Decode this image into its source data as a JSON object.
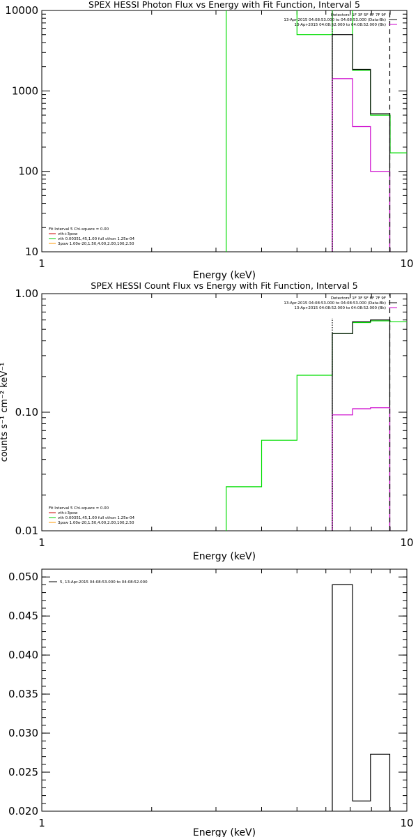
{
  "chart_data": [
    {
      "type": "line",
      "title": "SPEX HESSI Photon Flux vs Energy with Fit Function, Interval 5",
      "xlabel": "Energy (keV)",
      "ylabel": "",
      "xscale": "log",
      "yscale": "log",
      "xlim": [
        1,
        10
      ],
      "ylim": [
        10,
        10000
      ],
      "x_ticks": [
        "1",
        "10"
      ],
      "y_ticks": [
        "10",
        "100",
        "1000",
        "10000"
      ],
      "legend_topright": [
        {
          "text": "Detectors: 1F 3F 5F 6F 7F 9F",
          "color": ""
        },
        {
          "text": "13-Apr-2015 04:08:53.000 to 04:08:53.000 (Data-Bk)",
          "color": "#000000"
        },
        {
          "text": "13-Apr-2015 04:08:52.000 to 04:08:52.000 (Bk)",
          "color": "#cc00cc"
        }
      ],
      "legend_bottomleft": [
        {
          "text": "Fit Interval 5   Chi-square = 0.00",
          "color": ""
        },
        {
          "text": "vth+3pow",
          "color": "#cc0000"
        },
        {
          "text": "vth 0.00351,45,1.00  full cthon 1.25e-04",
          "color": "#00cc00"
        },
        {
          "text": "3pow 1.00e-20,1.50,4.00,2.00,100,2.50",
          "color": "#ff9900"
        }
      ],
      "series": [
        {
          "color": "#00dd00",
          "type": "step",
          "x": [
            3.2,
            3.2
          ],
          "y": [
            10,
            10000
          ]
        },
        {
          "color": "#00dd00",
          "type": "step",
          "x": [
            5.0,
            5.0,
            6.25,
            6.25
          ],
          "y": [
            10000,
            5000,
            5000,
            10000
          ]
        },
        {
          "color": "#00dd00",
          "type": "step",
          "x": [
            7.1,
            7.1,
            7.95,
            7.95,
            9.0,
            9.0,
            10.0
          ],
          "y": [
            10000,
            1800,
            1800,
            500,
            500,
            170,
            170
          ]
        },
        {
          "color": "#000000",
          "type": "step",
          "x": [
            6.25,
            6.25,
            7.1,
            7.1,
            7.95,
            7.95,
            8.98,
            8.98
          ],
          "y": [
            10,
            5000,
            5000,
            1850,
            1850,
            520,
            520,
            10
          ]
        },
        {
          "color": "#cc00cc",
          "type": "step",
          "x": [
            6.25,
            6.25,
            7.1,
            7.1,
            7.95,
            7.95,
            8.98,
            8.98
          ],
          "y": [
            10,
            1420,
            1420,
            360,
            360,
            100,
            100,
            10
          ]
        },
        {
          "color": "#000000",
          "type": "dotted",
          "x": [
            6.25,
            6.25
          ],
          "y": [
            10,
            10000
          ]
        },
        {
          "color": "#000000",
          "type": "dashed",
          "x": [
            8.98,
            8.98
          ],
          "y": [
            10,
            10000
          ]
        }
      ]
    },
    {
      "type": "line",
      "title": "SPEX HESSI Count Flux vs Energy with Fit Function, Interval 5",
      "xlabel": "Energy (keV)",
      "ylabel": "counts s⁻¹ cm⁻² keV⁻¹",
      "xscale": "log",
      "yscale": "log",
      "xlim": [
        1,
        10
      ],
      "ylim": [
        0.01,
        1.0
      ],
      "x_ticks": [
        "1",
        "10"
      ],
      "y_ticks": [
        "0.01",
        "0.10",
        "1.00"
      ],
      "legend_topright": [
        {
          "text": "Detectors: 1F 3F 5F 6F 7F 9F",
          "color": ""
        },
        {
          "text": "13-Apr-2015 04:08:53.000 to 04:08:53.000 (Data-Bk)",
          "color": "#000000"
        },
        {
          "text": "13-Apr-2015 04:08:52.000 to 04:08:52.000 (Bk)",
          "color": "#cc00cc"
        }
      ],
      "legend_bottomleft": [
        {
          "text": "Fit Interval 5   Chi-square = 0.00",
          "color": ""
        },
        {
          "text": "vth+3pow",
          "color": "#cc0000"
        },
        {
          "text": "vth 0.00351,45,1.00  full cthon 1.25e-04",
          "color": "#00cc00"
        },
        {
          "text": "3pow 1.00e-20,1.50,4.00,2.00,100,2.50",
          "color": "#ff9900"
        }
      ],
      "series": [
        {
          "color": "#00dd00",
          "type": "step",
          "x": [
            3.2,
            3.2,
            4.0,
            4.0,
            5.0,
            5.0,
            6.25,
            6.25,
            7.1,
            7.1,
            7.95,
            7.95,
            9.0,
            9.0,
            10.0
          ],
          "y": [
            0.01,
            0.0235,
            0.0235,
            0.058,
            0.058,
            0.205,
            0.205,
            0.46,
            0.46,
            0.57,
            0.57,
            0.59,
            0.59,
            0.58,
            0.58
          ]
        },
        {
          "color": "#000000",
          "type": "step",
          "x": [
            6.25,
            6.25,
            7.1,
            7.1,
            7.95,
            7.95,
            8.98,
            8.98
          ],
          "y": [
            0.01,
            0.46,
            0.46,
            0.58,
            0.58,
            0.6,
            0.6,
            0.01
          ]
        },
        {
          "color": "#cc00cc",
          "type": "step",
          "x": [
            6.25,
            6.25,
            7.1,
            7.1,
            7.95,
            7.95,
            8.98,
            8.98
          ],
          "y": [
            0.01,
            0.095,
            0.095,
            0.107,
            0.107,
            0.109,
            0.109,
            0.01
          ]
        },
        {
          "color": "#000000",
          "type": "dotted",
          "x": [
            6.25,
            6.25
          ],
          "y": [
            0.01,
            0.62
          ]
        },
        {
          "color": "#000000",
          "type": "dashed",
          "x": [
            8.98,
            8.98
          ],
          "y": [
            0.01,
            1.0
          ]
        }
      ]
    },
    {
      "type": "line",
      "title": "",
      "xlabel": "Energy (keV)",
      "ylabel": "",
      "xscale": "log",
      "yscale": "linear",
      "xlim": [
        1,
        10
      ],
      "ylim": [
        0.02,
        0.051
      ],
      "x_ticks": [
        "1",
        "10"
      ],
      "y_ticks": [
        "0.020",
        "0.025",
        "0.030",
        "0.035",
        "0.040",
        "0.045",
        "0.050"
      ],
      "legend_topleft": [
        {
          "text": "5, 13-Apr-2015 04:08:53.000 to 04:08:52.000",
          "color": "#000000"
        }
      ],
      "series": [
        {
          "color": "#000000",
          "type": "step",
          "x": [
            6.25,
            6.25,
            7.1,
            7.1,
            7.95,
            7.95,
            8.98,
            8.98
          ],
          "y": [
            0.02,
            0.049,
            0.049,
            0.0213,
            0.0213,
            0.0273,
            0.0273,
            0.02
          ]
        }
      ]
    }
  ]
}
